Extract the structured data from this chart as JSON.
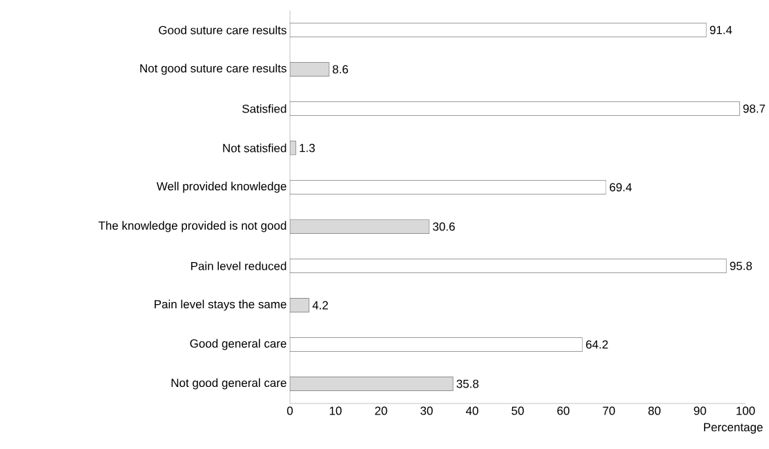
{
  "chart_data": {
    "type": "bar",
    "orientation": "horizontal",
    "xlabel": "Percentage",
    "categories": [
      "Good suture care results",
      "Not good suture care results",
      "Satisfied",
      "Not satisfied",
      "Well provided knowledge",
      "The knowledge provided is not good",
      "Pain level reduced",
      "Pain level stays the same",
      "Good general care",
      "Not good general care"
    ],
    "values": [
      91.4,
      8.6,
      98.7,
      1.3,
      69.4,
      30.6,
      95.8,
      4.2,
      64.2,
      35.8
    ],
    "colors": [
      "#ffffff",
      "#d9d9d9",
      "#ffffff",
      "#d9d9d9",
      "#ffffff",
      "#d9d9d9",
      "#ffffff",
      "#d9d9d9",
      "#ffffff",
      "#d9d9d9"
    ],
    "xlim": [
      0,
      100
    ],
    "xticks": [
      0,
      10,
      20,
      30,
      40,
      50,
      60,
      70,
      80,
      90,
      100
    ],
    "data_labels": true,
    "grid": false
  }
}
